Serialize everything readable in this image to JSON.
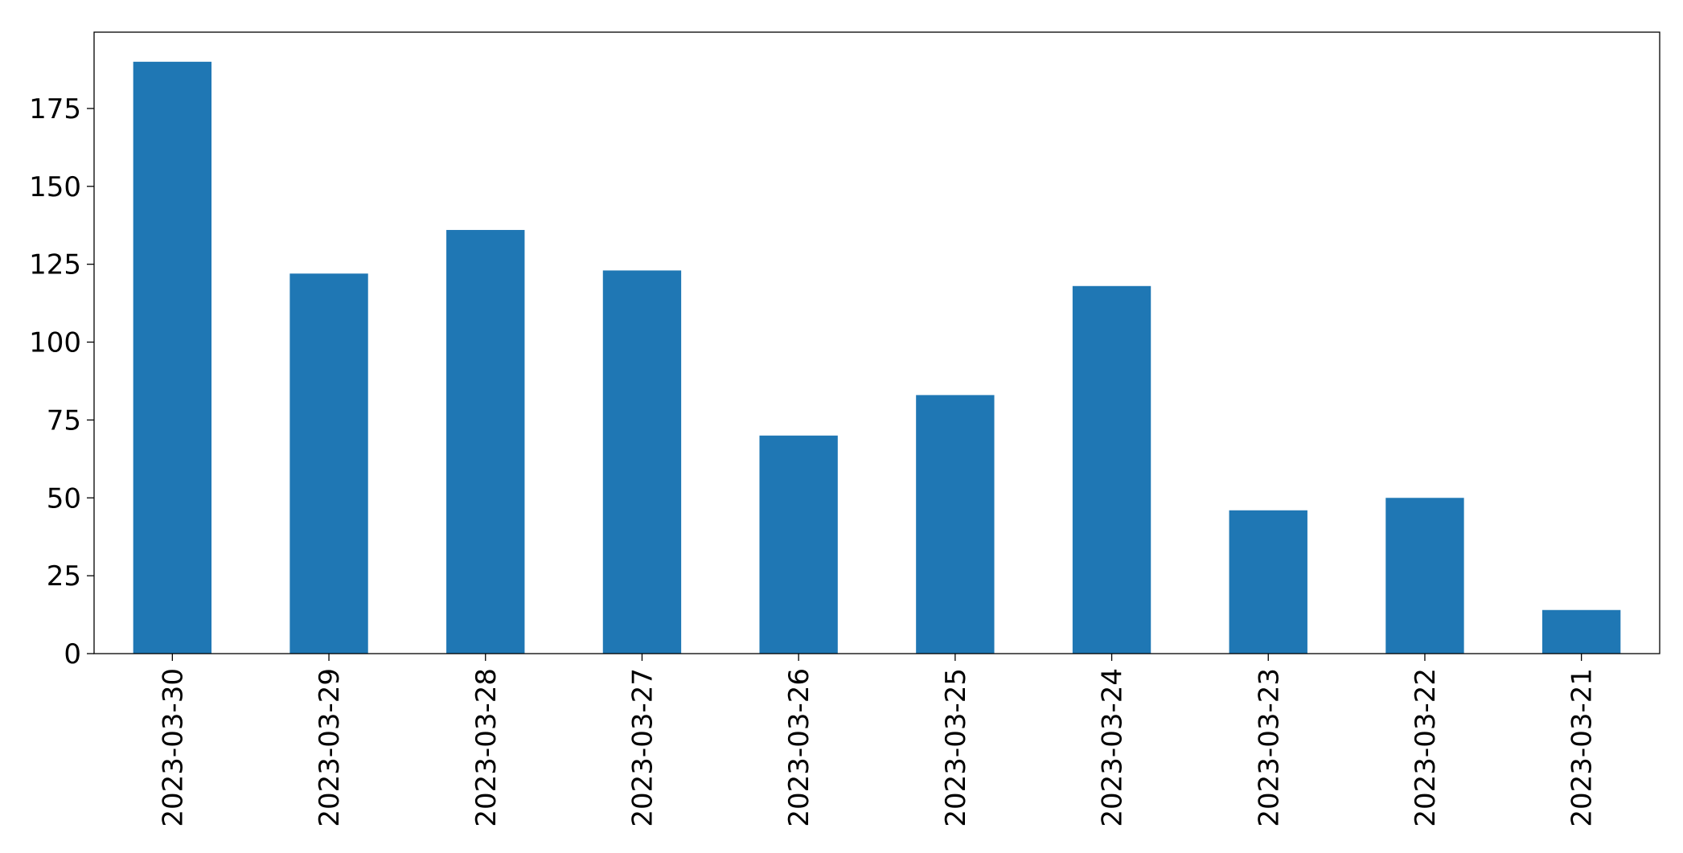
{
  "chart_data": {
    "type": "bar",
    "categories": [
      "2023-03-30",
      "2023-03-29",
      "2023-03-28",
      "2023-03-27",
      "2023-03-26",
      "2023-03-25",
      "2023-03-24",
      "2023-03-23",
      "2023-03-22",
      "2023-03-21"
    ],
    "values": [
      190,
      122,
      136,
      123,
      70,
      83,
      118,
      46,
      50,
      14
    ],
    "color": "#1f77b4",
    "ylim": [
      0,
      199.5
    ],
    "yticks": [
      0,
      25,
      50,
      75,
      100,
      125,
      150,
      175
    ],
    "grid": false
  }
}
